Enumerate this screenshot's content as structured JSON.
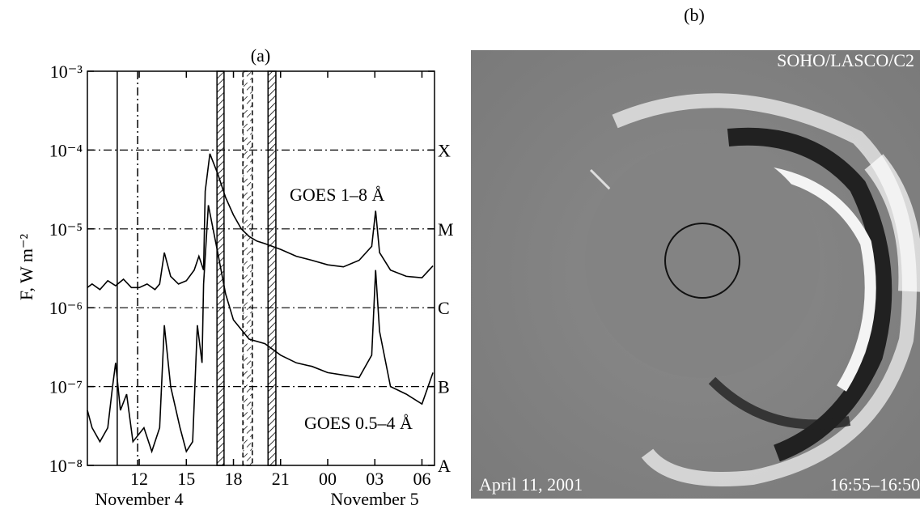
{
  "chart_data": {
    "type": "line",
    "title": "(a)",
    "ylabel": "F, W m⁻²",
    "log_y": true,
    "xlim": [
      8.7,
      30.8
    ],
    "ylim": [
      1e-08,
      0.001
    ],
    "xticks": [
      12,
      15,
      18,
      21,
      {
        "value": 24,
        "label": "00"
      },
      {
        "value": 27,
        "label": "03"
      },
      {
        "value": 30,
        "label": "06"
      }
    ],
    "yticks": [
      {
        "value": 1e-08,
        "label": "10⁻⁸"
      },
      {
        "value": 1e-07,
        "label": "10⁻⁷"
      },
      {
        "value": 1e-06,
        "label": "10⁻⁶"
      },
      {
        "value": 1e-05,
        "label": "10⁻⁵"
      },
      {
        "value": 0.0001,
        "label": "10⁻⁴"
      },
      {
        "value": 0.001,
        "label": "10⁻³"
      }
    ],
    "class_levels": [
      {
        "value": 1e-08,
        "label": "A"
      },
      {
        "value": 1e-07,
        "label": "B"
      },
      {
        "value": 1e-06,
        "label": "C"
      },
      {
        "value": 1e-05,
        "label": "M"
      },
      {
        "value": 0.0001,
        "label": "X"
      }
    ],
    "date_labels": [
      "November 4",
      "November 5"
    ],
    "vertical_lines": [
      {
        "x": 10.6,
        "style": "solid"
      },
      {
        "x": 11.9,
        "style": "dashdot"
      }
    ],
    "hatched_intervals": [
      {
        "range": [
          16.95,
          17.4
        ],
        "style": "solid"
      },
      {
        "range": [
          18.6,
          19.2
        ],
        "style": "dashed"
      },
      {
        "range": [
          20.2,
          20.7
        ],
        "style": "solid"
      }
    ],
    "series": [
      {
        "name": "GOES 1–8 Å",
        "color": "#000000",
        "x": [
          8.7,
          9,
          9.5,
          10,
          10.5,
          11,
          11.5,
          12,
          12.5,
          13,
          13.3,
          13.6,
          14,
          14.5,
          15,
          15.5,
          15.8,
          16.1,
          16.2,
          16.5,
          17,
          17.5,
          18,
          18.5,
          19,
          19.5,
          20,
          21,
          22,
          23,
          24,
          25,
          26,
          26.8,
          27.05,
          27.3,
          28,
          29,
          30,
          30.7
        ],
        "values": [
          1.8e-06,
          2e-06,
          1.7e-06,
          2.2e-06,
          1.9e-06,
          2.3e-06,
          1.8e-06,
          1.8e-06,
          2e-06,
          1.7e-06,
          2e-06,
          5e-06,
          2.5e-06,
          2e-06,
          2.2e-06,
          3e-06,
          4.5e-06,
          3e-06,
          3e-05,
          9e-05,
          5e-05,
          2.5e-05,
          1.5e-05,
          1e-05,
          8e-06,
          7e-06,
          6.5e-06,
          5.5e-06,
          4.5e-06,
          4e-06,
          3.5e-06,
          3.3e-06,
          4e-06,
          6e-06,
          1.7e-05,
          5e-06,
          3e-06,
          2.5e-06,
          2.4e-06,
          3.4e-06
        ]
      },
      {
        "name": "GOES 0.5–4 Å",
        "color": "#000000",
        "x": [
          8.7,
          9,
          9.5,
          10,
          10.3,
          10.5,
          10.8,
          11.2,
          11.6,
          12.3,
          12.8,
          13.3,
          13.6,
          14,
          14.6,
          15,
          15.4,
          15.7,
          16,
          16.1,
          16.4,
          17,
          17.5,
          18,
          19,
          20,
          21,
          22,
          23,
          24,
          25,
          26,
          26.8,
          27.05,
          27.3,
          28,
          29,
          30,
          30.7
        ],
        "values": [
          5e-08,
          3e-08,
          2e-08,
          3e-08,
          1e-07,
          2e-07,
          5e-08,
          8e-08,
          2e-08,
          3e-08,
          1.5e-08,
          3e-08,
          6e-07,
          1e-07,
          3e-08,
          1.5e-08,
          2e-08,
          6e-07,
          2e-07,
          2e-06,
          2e-05,
          5e-06,
          1.5e-06,
          7e-07,
          4e-07,
          3.5e-07,
          2.5e-07,
          2e-07,
          1.8e-07,
          1.5e-07,
          1.4e-07,
          1.3e-07,
          2.5e-07,
          3e-06,
          5e-07,
          1e-07,
          8e-08,
          6e-08,
          1.5e-07
        ]
      }
    ]
  },
  "image": {
    "title": "(b)",
    "instrument": "SOHO/LASCO/C2",
    "date": "April 11, 2001",
    "time": "16:55–16:50"
  }
}
